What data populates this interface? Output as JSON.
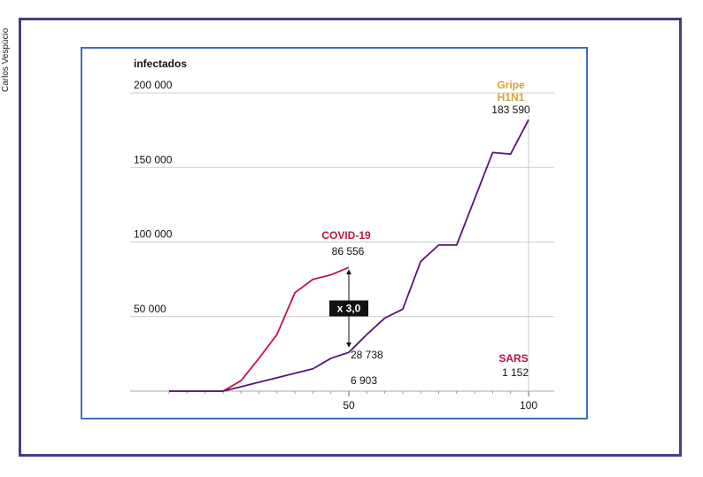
{
  "credit": "Carlos Vespúcio",
  "colors": {
    "covid": "#c0163f",
    "h1n1": "#5a1474",
    "h1n1_label": "#d4a336",
    "sars_label": "#b5153f",
    "frame_outer": "#4b3a86",
    "frame_inner": "#3f6fb6",
    "grid": "#cccccc"
  },
  "chart_data": {
    "type": "line",
    "ylabel": "infectados",
    "xlim": [
      0,
      105
    ],
    "ylim": [
      0,
      200000
    ],
    "y_ticks": [
      {
        "value": 50000,
        "label": "50 000"
      },
      {
        "value": 100000,
        "label": "100 000"
      },
      {
        "value": 150000,
        "label": "150 000"
      },
      {
        "value": 200000,
        "label": "200 000"
      }
    ],
    "x_ticks": [
      {
        "value": 50,
        "label": "50"
      },
      {
        "value": 100,
        "label": "100"
      }
    ],
    "grid": true,
    "series": [
      {
        "name": "COVID-19",
        "key": "covid",
        "points": [
          [
            0,
            0
          ],
          [
            15,
            0
          ],
          [
            20,
            7000
          ],
          [
            25,
            22000
          ],
          [
            30,
            38000
          ],
          [
            35,
            66000
          ],
          [
            40,
            75000
          ],
          [
            45,
            78000
          ],
          [
            50,
            83000
          ]
        ],
        "end_value": "86 556"
      },
      {
        "name": "Gripe H1N1",
        "key": "h1n1",
        "points": [
          [
            0,
            0
          ],
          [
            15,
            0
          ],
          [
            20,
            3000
          ],
          [
            25,
            6000
          ],
          [
            30,
            9000
          ],
          [
            35,
            12000
          ],
          [
            40,
            15000
          ],
          [
            45,
            22000
          ],
          [
            50,
            26000
          ],
          [
            55,
            38000
          ],
          [
            60,
            49000
          ],
          [
            65,
            55000
          ],
          [
            70,
            87000
          ],
          [
            75,
            98000
          ],
          [
            80,
            98000
          ],
          [
            85,
            129000
          ],
          [
            90,
            160000
          ],
          [
            95,
            159000
          ],
          [
            100,
            182000
          ]
        ],
        "end_value": "183 590",
        "mid_value": "28 738"
      },
      {
        "name": "SARS",
        "key": "sars",
        "end_value": "1 152",
        "mid_value": "6 903"
      }
    ],
    "annotations": [
      {
        "text": "x 3,0",
        "x": 50,
        "y_top": 80000,
        "y_bottom": 31000
      }
    ],
    "legend_labels": {
      "covid": "COVID-19",
      "h1n1_line1": "Gripe",
      "h1n1_line2": "H1N1",
      "sars": "SARS"
    }
  }
}
